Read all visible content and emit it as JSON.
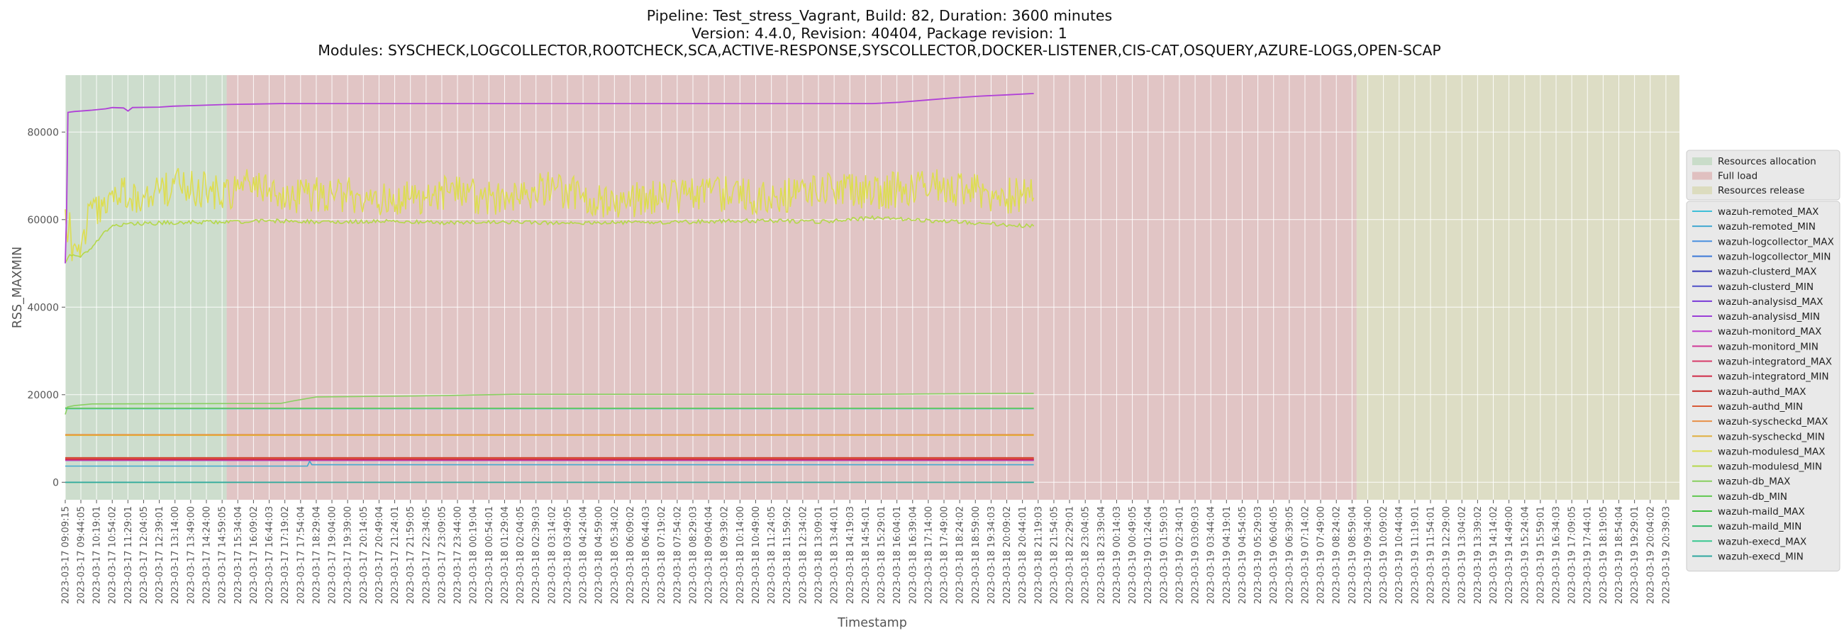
{
  "chart_data": {
    "type": "line",
    "title": [
      "Pipeline: Test_stress_Vagrant, Build: 82, Duration: 3600 minutes",
      "Version: 4.4.0, Revision: 40404, Package revision: 1",
      "Modules: SYSCHECK,LOGCOLLECTOR,ROOTCHECK,SCA,ACTIVE-RESPONSE,SYSCOLLECTOR,DOCKER-LISTENER,CIS-CAT,OSQUERY,AZURE-LOGS,OPEN-SCAP"
    ],
    "xlabel": "Timestamp",
    "ylabel": "RSS_MAXMIN",
    "ylim": [
      -4000,
      93000
    ],
    "yticks": [
      0,
      20000,
      40000,
      60000,
      80000
    ],
    "ytick_labels": [
      "0",
      "20000",
      "40000",
      "60000",
      "80000"
    ],
    "x_start": "2023-03-17 09:09:15",
    "x_end": "2023-03-19 21:09:15",
    "xtick_labels": [
      "2023-03-17 09:09:15",
      "2023-03-17 09:44:05",
      "2023-03-17 10:19:01",
      "2023-03-17 10:54:02",
      "2023-03-17 11:29:01",
      "2023-03-17 12:04:05",
      "2023-03-17 12:39:01",
      "2023-03-17 13:14:00",
      "2023-03-17 13:49:00",
      "2023-03-17 14:24:00",
      "2023-03-17 14:59:05",
      "2023-03-17 15:34:04",
      "2023-03-17 16:09:02",
      "2023-03-17 16:44:03",
      "2023-03-17 17:19:02",
      "2023-03-17 17:54:04",
      "2023-03-17 18:29:04",
      "2023-03-17 19:04:00",
      "2023-03-17 19:39:00",
      "2023-03-17 20:14:05",
      "2023-03-17 20:49:04",
      "2023-03-17 21:24:01",
      "2023-03-17 21:59:05",
      "2023-03-17 22:34:05",
      "2023-03-17 23:09:05",
      "2023-03-17 23:44:00",
      "2023-03-18 00:19:04",
      "2023-03-18 00:54:01",
      "2023-03-18 01:29:04",
      "2023-03-18 02:04:05",
      "2023-03-18 02:39:03",
      "2023-03-18 03:14:02",
      "2023-03-18 03:49:05",
      "2023-03-18 04:24:04",
      "2023-03-18 04:59:00",
      "2023-03-18 05:34:02",
      "2023-03-18 06:09:02",
      "2023-03-18 06:44:03",
      "2023-03-18 07:19:02",
      "2023-03-18 07:54:02",
      "2023-03-18 08:29:03",
      "2023-03-18 09:04:04",
      "2023-03-18 09:39:02",
      "2023-03-18 10:14:00",
      "2023-03-18 10:49:00",
      "2023-03-18 11:24:05",
      "2023-03-18 11:59:02",
      "2023-03-18 12:34:02",
      "2023-03-18 13:09:01",
      "2023-03-18 13:44:01",
      "2023-03-18 14:19:03",
      "2023-03-18 14:54:01",
      "2023-03-18 15:29:01",
      "2023-03-18 16:04:01",
      "2023-03-18 16:39:04",
      "2023-03-18 17:14:00",
      "2023-03-18 17:49:00",
      "2023-03-18 18:24:02",
      "2023-03-18 18:59:00",
      "2023-03-18 19:34:03",
      "2023-03-18 20:09:02",
      "2023-03-18 20:44:01",
      "2023-03-18 21:19:03",
      "2023-03-18 21:54:05",
      "2023-03-18 22:29:01",
      "2023-03-18 23:04:05",
      "2023-03-18 23:39:04",
      "2023-03-19 00:14:03",
      "2023-03-19 00:49:05",
      "2023-03-19 01:24:04",
      "2023-03-19 01:59:03",
      "2023-03-19 02:34:01",
      "2023-03-19 03:09:03",
      "2023-03-19 03:44:04",
      "2023-03-19 04:19:01",
      "2023-03-19 04:54:05",
      "2023-03-19 05:29:03",
      "2023-03-19 06:04:05",
      "2023-03-19 06:39:05",
      "2023-03-19 07:14:02",
      "2023-03-19 07:49:00",
      "2023-03-19 08:24:02",
      "2023-03-19 08:59:04",
      "2023-03-19 09:34:00",
      "2023-03-19 10:09:02",
      "2023-03-19 10:44:04",
      "2023-03-19 11:19:01",
      "2023-03-19 11:54:01",
      "2023-03-19 12:29:00",
      "2023-03-19 13:04:02",
      "2023-03-19 13:39:02",
      "2023-03-19 14:14:02",
      "2023-03-19 14:49:00",
      "2023-03-19 15:24:04",
      "2023-03-19 15:59:01",
      "2023-03-19 16:34:03",
      "2023-03-19 17:09:05",
      "2023-03-19 17:44:01",
      "2023-03-19 18:19:05",
      "2023-03-19 18:54:04",
      "2023-03-19 19:29:01",
      "2023-03-19 20:04:02",
      "2023-03-19 20:39:03"
    ],
    "regions": [
      {
        "name": "Resources allocation",
        "start": "2023-03-17 09:09:15",
        "end": "2023-03-17 15:09:15",
        "color": "#c9dcc9"
      },
      {
        "name": "Full load",
        "start": "2023-03-17 15:09:15",
        "end": "2023-03-19 09:09:15",
        "color": "#e0c0c0"
      },
      {
        "name": "Resources release",
        "start": "2023-03-19 09:09:15",
        "end": "2023-03-19 21:09:15",
        "color": "#dcdcbf"
      }
    ],
    "grid": true,
    "legend_position": "right",
    "series": [
      {
        "name": "wazuh-remoted_MAX",
        "color": "#3fbfd8",
        "values": [
          [
            0,
            16800
          ],
          [
            2160,
            16800
          ]
        ]
      },
      {
        "name": "wazuh-remoted_MIN",
        "color": "#42a8d0",
        "values": [
          [
            0,
            3700
          ],
          [
            540,
            3700
          ],
          [
            545,
            4800
          ],
          [
            550,
            4000
          ],
          [
            2160,
            4000
          ]
        ]
      },
      {
        "name": "wazuh-logcollector_MAX",
        "color": "#4a90e0",
        "values": [
          [
            0,
            5200
          ],
          [
            2160,
            5200
          ]
        ]
      },
      {
        "name": "wazuh-logcollector_MIN",
        "color": "#3a78d8",
        "values": [
          [
            0,
            5000
          ],
          [
            2160,
            5000
          ]
        ]
      },
      {
        "name": "wazuh-clusterd_MAX",
        "color": "#3838b8",
        "values": [
          [
            0,
            5300
          ],
          [
            2160,
            5300
          ]
        ]
      },
      {
        "name": "wazuh-clusterd_MIN",
        "color": "#5050c8",
        "values": [
          [
            0,
            5100
          ],
          [
            2160,
            5100
          ]
        ]
      },
      {
        "name": "wazuh-analysisd_MAX",
        "color": "#7a3ad8",
        "values": [
          [
            0,
            5200
          ],
          [
            2160,
            5200
          ]
        ]
      },
      {
        "name": "wazuh-analysisd_MIN",
        "color": "#9b3fd8",
        "values": [
          [
            0,
            5000
          ],
          [
            2160,
            5000
          ]
        ]
      },
      {
        "name": "wazuh-monitord_MAX",
        "color": "#c03fd0",
        "values": [
          [
            0,
            5150
          ],
          [
            2160,
            5150
          ]
        ]
      },
      {
        "name": "wazuh-monitord_MIN",
        "color": "#d03a98",
        "values": [
          [
            0,
            5050
          ],
          [
            2160,
            5050
          ]
        ]
      },
      {
        "name": "wazuh-integratord_MAX",
        "color": "#d83a6a",
        "values": [
          [
            0,
            5400
          ],
          [
            2160,
            5400
          ]
        ]
      },
      {
        "name": "wazuh-integratord_MIN",
        "color": "#d02a48",
        "values": [
          [
            0,
            5250
          ],
          [
            2160,
            5250
          ]
        ]
      },
      {
        "name": "wazuh-authd_MAX",
        "color": "#c82a28",
        "values": [
          [
            0,
            5600
          ],
          [
            2160,
            5600
          ]
        ]
      },
      {
        "name": "wazuh-authd_MIN",
        "color": "#d85a38",
        "values": [
          [
            0,
            5500
          ],
          [
            2160,
            5500
          ]
        ]
      },
      {
        "name": "wazuh-syscheckd_MAX",
        "color": "#e89048",
        "values": [
          [
            0,
            10900
          ],
          [
            2160,
            10900
          ]
        ]
      },
      {
        "name": "wazuh-syscheckd_MIN",
        "color": "#e0b040",
        "values": [
          [
            0,
            10700
          ],
          [
            2160,
            10700
          ]
        ]
      },
      {
        "name": "wazuh-modulesd_MAX",
        "color": "#dddd50",
        "values": [
          [
            0,
            61000
          ],
          [
            5,
            56000
          ],
          [
            10,
            60000
          ],
          [
            15,
            52000
          ],
          [
            30,
            54000
          ],
          [
            45,
            57000
          ],
          [
            60,
            63000
          ],
          [
            75,
            62000
          ],
          [
            90,
            65000
          ],
          [
            105,
            67000
          ],
          [
            120,
            66000
          ],
          [
            150,
            65000
          ],
          [
            180,
            64000
          ],
          [
            240,
            68000
          ],
          [
            360,
            66000
          ],
          [
            420,
            69000
          ],
          [
            480,
            65000
          ],
          [
            600,
            66000
          ],
          [
            720,
            64000
          ],
          [
            840,
            66000
          ],
          [
            960,
            65000
          ],
          [
            1080,
            67000
          ],
          [
            1200,
            64000
          ],
          [
            1320,
            65000
          ],
          [
            1440,
            66000
          ],
          [
            1560,
            65000
          ],
          [
            1680,
            67000
          ],
          [
            1800,
            66000
          ],
          [
            1920,
            68000
          ],
          [
            2040,
            66000
          ],
          [
            2160,
            65000
          ]
        ]
      },
      {
        "name": "wazuh-modulesd_MIN",
        "color": "#b4d84a",
        "values": [
          [
            0,
            50000
          ],
          [
            10,
            52000
          ],
          [
            30,
            51500
          ],
          [
            50,
            52500
          ],
          [
            70,
            55000
          ],
          [
            90,
            57500
          ],
          [
            110,
            58500
          ],
          [
            150,
            59000
          ],
          [
            240,
            59300
          ],
          [
            360,
            59500
          ],
          [
            480,
            59700
          ],
          [
            600,
            59400
          ],
          [
            720,
            59600
          ],
          [
            840,
            59300
          ],
          [
            960,
            59500
          ],
          [
            1080,
            59200
          ],
          [
            1200,
            59400
          ],
          [
            1320,
            59300
          ],
          [
            1440,
            59600
          ],
          [
            1560,
            59800
          ],
          [
            1680,
            59500
          ],
          [
            1800,
            60400
          ],
          [
            1920,
            59800
          ],
          [
            2040,
            59200
          ],
          [
            2160,
            58500
          ]
        ]
      },
      {
        "name": "wazuh-db_MAX",
        "color": "#88d060",
        "values": [
          [
            0,
            15500
          ],
          [
            5,
            17200
          ],
          [
            20,
            17500
          ],
          [
            60,
            17900
          ],
          [
            480,
            18000
          ],
          [
            510,
            18600
          ],
          [
            560,
            19500
          ],
          [
            780,
            19700
          ],
          [
            840,
            19800
          ],
          [
            1000,
            20100
          ],
          [
            1800,
            20100
          ],
          [
            2100,
            20300
          ],
          [
            2160,
            20300
          ]
        ]
      },
      {
        "name": "wazuh-db_MIN",
        "color": "#60c850",
        "values": [
          [
            0,
            17000
          ],
          [
            5,
            16900
          ],
          [
            2160,
            16900
          ]
        ]
      },
      {
        "name": "wazuh-maild_MAX",
        "color": "#40c040",
        "values": [
          [
            0,
            0
          ],
          [
            2160,
            0
          ]
        ]
      },
      {
        "name": "wazuh-maild_MIN",
        "color": "#30b868",
        "values": [
          [
            0,
            0
          ],
          [
            2160,
            0
          ]
        ]
      },
      {
        "name": "wazuh-execd_MAX",
        "color": "#38c890",
        "values": [
          [
            0,
            0
          ],
          [
            2160,
            0
          ]
        ]
      },
      {
        "name": "wazuh-execd_MIN",
        "color": "#30a8a0",
        "values": [
          [
            0,
            0
          ],
          [
            2160,
            0
          ]
        ]
      }
    ],
    "analysisd_max_path": [
      [
        0,
        50000
      ],
      [
        3,
        62000
      ],
      [
        6,
        84500
      ],
      [
        20,
        84700
      ],
      [
        60,
        85000
      ],
      [
        90,
        85300
      ],
      [
        105,
        85600
      ],
      [
        130,
        85500
      ],
      [
        140,
        84800
      ],
      [
        150,
        85600
      ],
      [
        210,
        85700
      ],
      [
        240,
        85900
      ],
      [
        300,
        86100
      ],
      [
        360,
        86300
      ],
      [
        420,
        86400
      ],
      [
        480,
        86500
      ],
      [
        1800,
        86500
      ],
      [
        1860,
        86800
      ],
      [
        1920,
        87300
      ],
      [
        1980,
        87800
      ],
      [
        2040,
        88200
      ],
      [
        2100,
        88500
      ],
      [
        2160,
        88800
      ]
    ]
  }
}
